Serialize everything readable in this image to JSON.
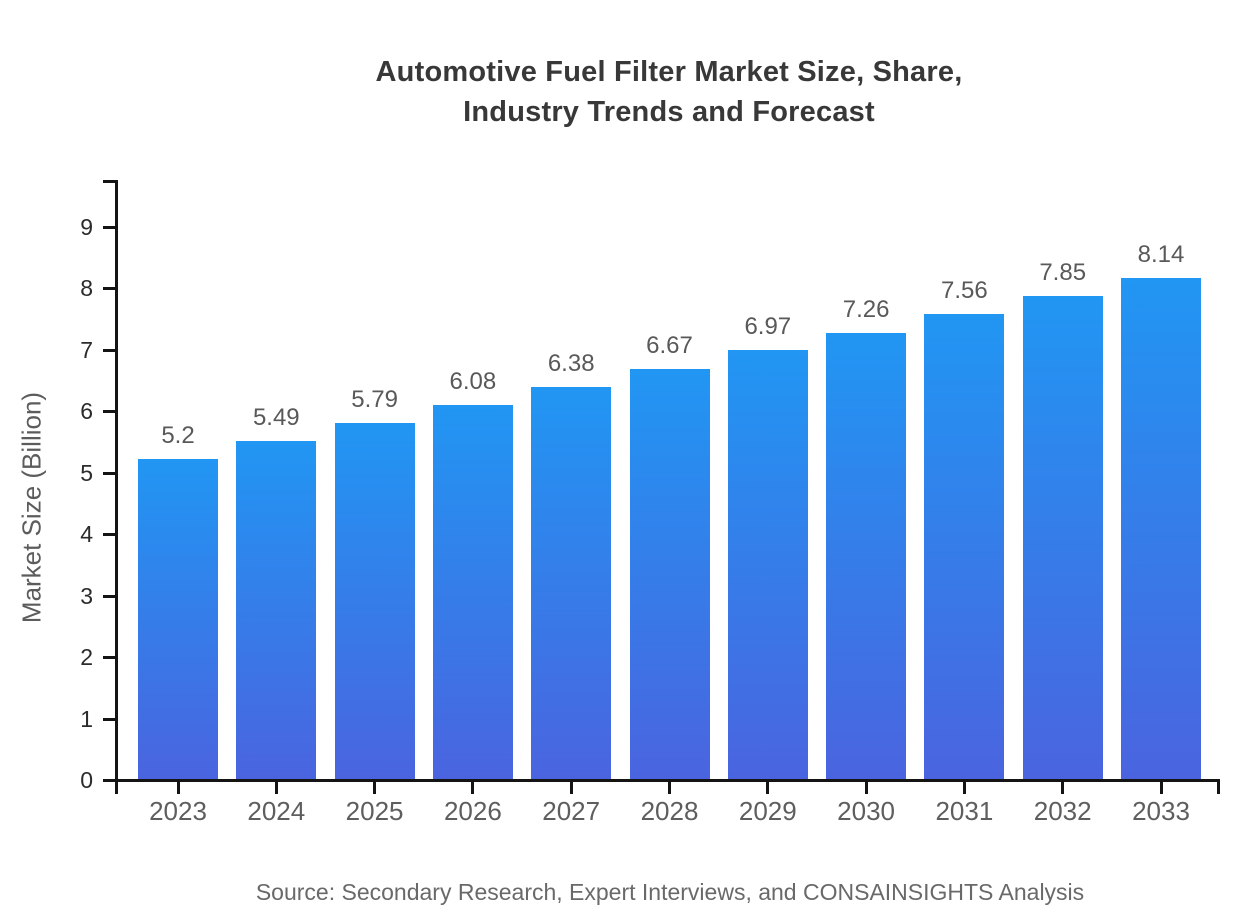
{
  "title_line1": "Automotive Fuel Filter Market Size, Share,",
  "title_line2": "Industry Trends and Forecast",
  "source": "Source: Secondary Research, Expert Interviews, and CONSAINSIGHTS Analysis",
  "colors": {
    "bar_gradient_top": "#2196F3",
    "bar_gradient_bottom": "#4A64DF",
    "axis": "#141414",
    "title_text": "#383838",
    "value_label_text": "#595959",
    "category_label_text": "#5e5e5e",
    "y_tick_label_text": "#2b2b2b",
    "source_text": "#696969"
  },
  "chart_data": {
    "type": "bar",
    "title": "Automotive Fuel Filter Market Size, Share, Industry Trends and Forecast",
    "categories": [
      "2023",
      "2024",
      "2025",
      "2026",
      "2027",
      "2028",
      "2029",
      "2030",
      "2031",
      "2032",
      "2033"
    ],
    "values": [
      5.2,
      5.49,
      5.79,
      6.08,
      6.38,
      6.67,
      6.97,
      7.26,
      7.56,
      7.85,
      8.14
    ],
    "value_labels": [
      "5.2",
      "5.49",
      "5.79",
      "6.08",
      "6.38",
      "6.67",
      "6.97",
      "7.26",
      "7.56",
      "7.85",
      "8.14"
    ],
    "xlabel": "",
    "ylabel": "Market Size (Billion)",
    "ylim": [
      0,
      9.8
    ],
    "yticks": [
      0,
      1,
      2,
      3,
      4,
      5,
      6,
      7,
      8,
      9
    ],
    "grid": false,
    "legend": false,
    "bar_color_top": "#2196F3",
    "bar_color_bottom": "#4A64DF",
    "source": "Source: Secondary Research, Expert Interviews, and CONSAINSIGHTS Analysis"
  }
}
